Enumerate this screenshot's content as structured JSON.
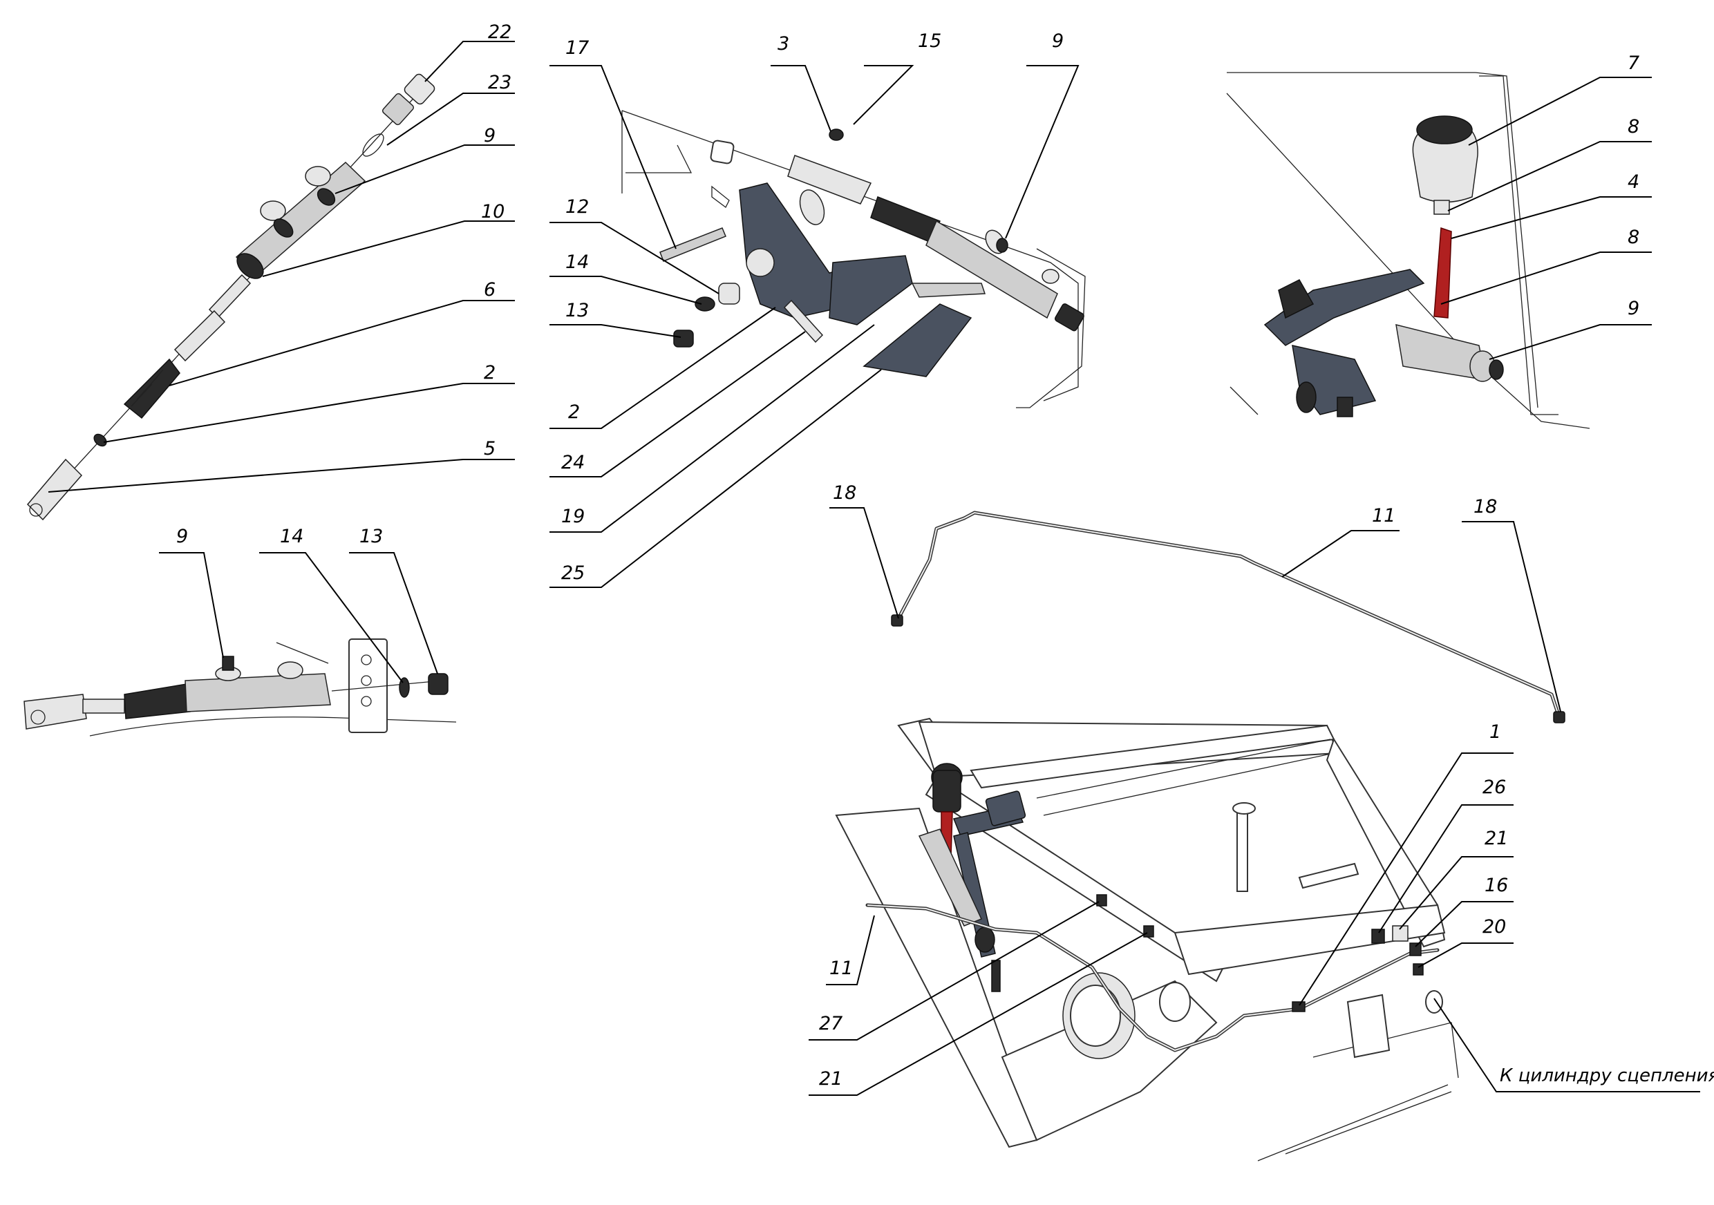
{
  "callouts": {
    "v1": {
      "p22": "22",
      "p23": "23",
      "p9": "9",
      "p10": "10",
      "p6": "6",
      "p2": "2",
      "p5": "5"
    },
    "v2": {
      "p9": "9",
      "p14": "14",
      "p13": "13"
    },
    "v3": {
      "p17": "17",
      "p3": "3",
      "p15": "15",
      "p9": "9",
      "p12": "12",
      "p14": "14",
      "p13": "13",
      "p2": "2",
      "p24": "24",
      "p19": "19",
      "p25": "25"
    },
    "v4": {
      "p7": "7",
      "p8a": "8",
      "p4": "4",
      "p8b": "8",
      "p9": "9"
    },
    "v5": {
      "p18a": "18",
      "p11": "11",
      "p18b": "18"
    },
    "v6": {
      "p1": "1",
      "p26": "26",
      "p21a": "21",
      "p16": "16",
      "p20": "20",
      "p11": "11",
      "p27": "27",
      "p21b": "21"
    }
  },
  "notes": {
    "to_cylinder": "К цилиндру сцепления"
  },
  "colors": {
    "line": "#000000",
    "part_fill": "#cfcfcf",
    "dark_part": "#2a2a2a",
    "bracket": "#4a5260",
    "hose_red": "#b02020"
  }
}
